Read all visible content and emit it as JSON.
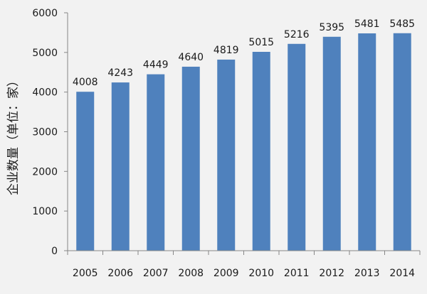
{
  "chart_data": {
    "type": "bar",
    "title": "",
    "xlabel": "",
    "ylabel": "企业数量（单位：家）",
    "categories": [
      "2005",
      "2006",
      "2007",
      "2008",
      "2009",
      "2010",
      "2011",
      "2012",
      "2013",
      "2014"
    ],
    "values": [
      4008,
      4243,
      4449,
      4640,
      4819,
      5015,
      5216,
      5395,
      5481,
      5485
    ],
    "ylim": [
      0,
      6000
    ],
    "yticks": [
      0,
      1000,
      2000,
      3000,
      4000,
      5000,
      6000
    ],
    "grid": false,
    "legend": "none",
    "bar_color": "#4f81bd",
    "axis_color": "#868686",
    "text_color": "#1a1a1a",
    "background": "#f2f2f2"
  }
}
